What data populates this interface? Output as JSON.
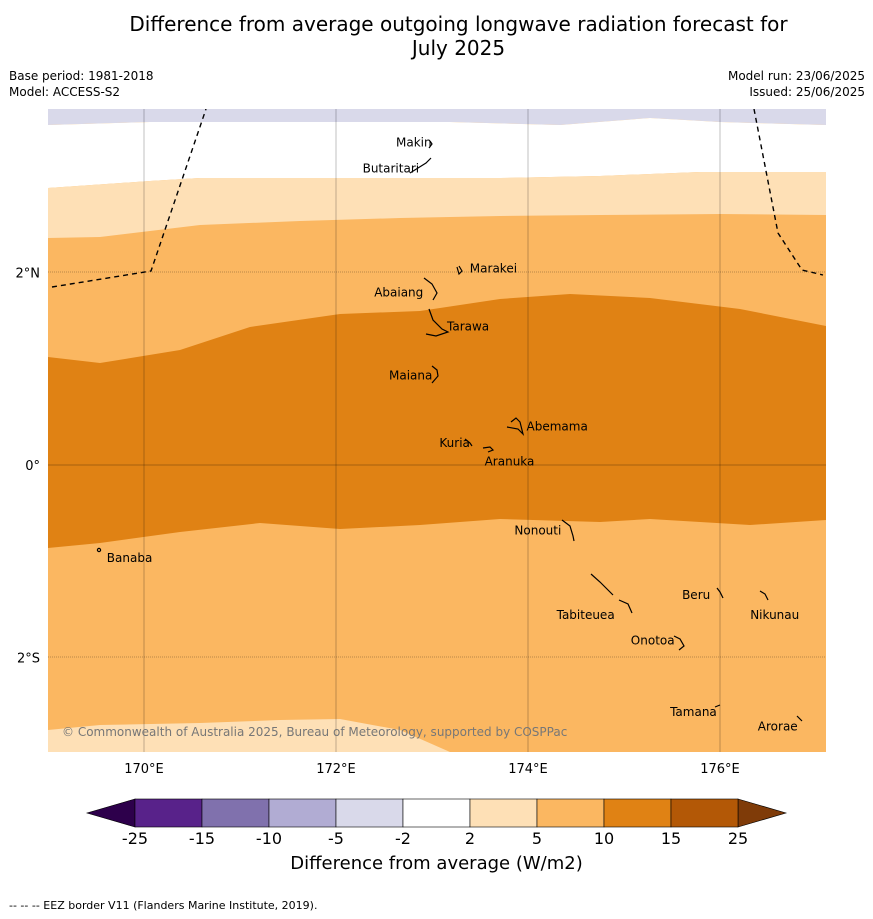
{
  "title_line1": "Difference from average outgoing longwave radiation forecast for",
  "title_line2": "July 2025",
  "meta_left": {
    "base_period": "Base period: 1981-2018",
    "model": "Model: ACCESS-S2"
  },
  "meta_right": {
    "model_run": "Model run: 23/06/2025",
    "issued": "Issued: 25/06/2025"
  },
  "copyright": "© Commonwealth of Australia 2025, Bureau of Meteorology, supported by COSPPac",
  "footer": "--  --  -- EEZ border V11 (Flanders Marine Institute, 2019).",
  "map": {
    "lon_range": [
      169.0,
      177.1
    ],
    "lat_range": [
      -3.0,
      3.7
    ],
    "lon_ticks": [
      {
        "value": 170,
        "label": "170°E"
      },
      {
        "value": 172,
        "label": "172°E"
      },
      {
        "value": 174,
        "label": "174°E"
      },
      {
        "value": 176,
        "label": "176°E"
      }
    ],
    "lat_ticks": [
      {
        "value": 2,
        "label": "2°N"
      },
      {
        "value": 0,
        "label": "0°"
      },
      {
        "value": -2,
        "label": "2°S"
      }
    ],
    "places": [
      {
        "name": "Makin",
        "lon": 173.0,
        "lat": 3.33
      },
      {
        "name": "Butaritari",
        "lon": 172.85,
        "lat": 3.1
      },
      {
        "name": "Marakei",
        "lon": 173.3,
        "lat": 2.0
      },
      {
        "name": "Abaiang",
        "lon": 172.95,
        "lat": 1.8
      },
      {
        "name": "Tarawa",
        "lon": 173.0,
        "lat": 1.45
      },
      {
        "name": "Maiana",
        "lon": 173.0,
        "lat": 0.93
      },
      {
        "name": "Abemama",
        "lon": 173.87,
        "lat": 0.4
      },
      {
        "name": "Kuria",
        "lon": 173.4,
        "lat": 0.22
      },
      {
        "name": "Aranuka",
        "lon": 173.6,
        "lat": 0.17
      },
      {
        "name": "Nonouti",
        "lon": 174.4,
        "lat": -0.65
      },
      {
        "name": "Banaba",
        "lon": 169.55,
        "lat": -0.87
      },
      {
        "name": "Tabiteuea",
        "lon": 174.85,
        "lat": -1.4
      },
      {
        "name": "Beru",
        "lon": 175.98,
        "lat": -1.33
      },
      {
        "name": "Nikunau",
        "lon": 176.45,
        "lat": -1.37
      },
      {
        "name": "Onotoa",
        "lon": 175.55,
        "lat": -1.8
      },
      {
        "name": "Tamana",
        "lon": 175.98,
        "lat": -2.5
      },
      {
        "name": "Arorae",
        "lon": 176.8,
        "lat": -2.63
      }
    ]
  },
  "colorbar": {
    "label": "Difference from average (W/m2)",
    "ticks": [
      "-25",
      "-15",
      "-10",
      "-5",
      "-2",
      "2",
      "5",
      "10",
      "15",
      "25"
    ],
    "colors": [
      "#58228a",
      "#8071ad",
      "#b1acd3",
      "#d9d9ea",
      "#ffffff",
      "#fee0b6",
      "#fbb761",
      "#e08214",
      "#b35806"
    ],
    "under_color": "#2d004b",
    "over_color": "#7f3b08"
  }
}
